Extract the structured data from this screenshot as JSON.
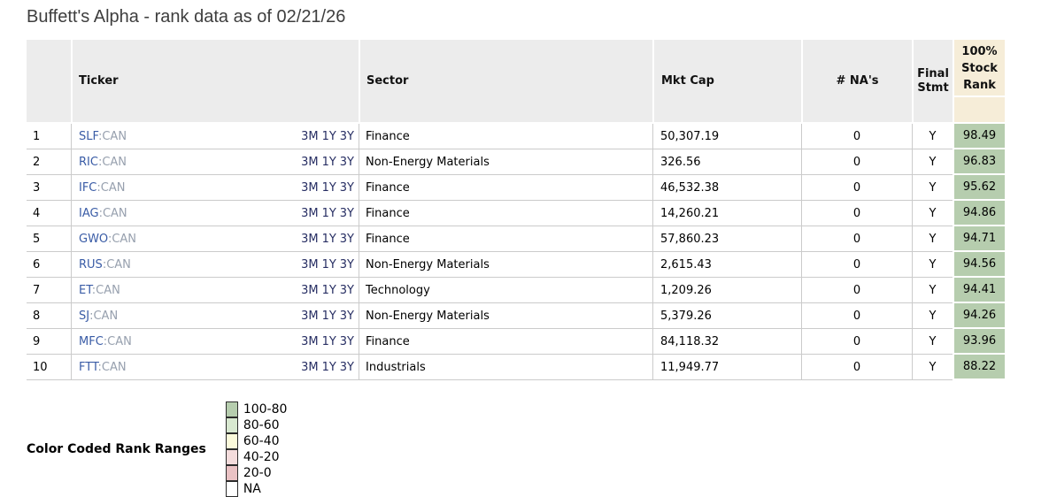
{
  "title": "Buffett's Alpha - rank data as of 02/21/26",
  "table": {
    "headers": {
      "rank_number": "",
      "ticker": "Ticker",
      "sector": "Sector",
      "mkt_cap": "Mkt Cap",
      "num_nas": "# NA's",
      "final_stmt": "Final\nStmt",
      "stock_rank": "100%\nStock\nRank"
    },
    "colors": {
      "header_bg": "#ececec",
      "rank_header_bg": "#f6edd8",
      "rank_cell_bg": "#b6cdae",
      "row_border": "#cbcbcb"
    },
    "rows": [
      {
        "num": "1",
        "ticker": "SLF",
        "suffix": ":CAN",
        "links": [
          "3M",
          "1Y",
          "3Y"
        ],
        "sector": "Finance",
        "mkt_cap": "50,307.19",
        "num_nas": "0",
        "final_stmt": "Y",
        "rank": "98.49"
      },
      {
        "num": "2",
        "ticker": "RIC",
        "suffix": ":CAN",
        "links": [
          "3M",
          "1Y",
          "3Y"
        ],
        "sector": "Non-Energy Materials",
        "mkt_cap": "326.56",
        "num_nas": "0",
        "final_stmt": "Y",
        "rank": "96.83"
      },
      {
        "num": "3",
        "ticker": "IFC",
        "suffix": ":CAN",
        "links": [
          "3M",
          "1Y",
          "3Y"
        ],
        "sector": "Finance",
        "mkt_cap": "46,532.38",
        "num_nas": "0",
        "final_stmt": "Y",
        "rank": "95.62"
      },
      {
        "num": "4",
        "ticker": "IAG",
        "suffix": ":CAN",
        "links": [
          "3M",
          "1Y",
          "3Y"
        ],
        "sector": "Finance",
        "mkt_cap": "14,260.21",
        "num_nas": "0",
        "final_stmt": "Y",
        "rank": "94.86"
      },
      {
        "num": "5",
        "ticker": "GWO",
        "suffix": ":CAN",
        "links": [
          "3M",
          "1Y",
          "3Y"
        ],
        "sector": "Finance",
        "mkt_cap": "57,860.23",
        "num_nas": "0",
        "final_stmt": "Y",
        "rank": "94.71"
      },
      {
        "num": "6",
        "ticker": "RUS",
        "suffix": ":CAN",
        "links": [
          "3M",
          "1Y",
          "3Y"
        ],
        "sector": "Non-Energy Materials",
        "mkt_cap": "2,615.43",
        "num_nas": "0",
        "final_stmt": "Y",
        "rank": "94.56"
      },
      {
        "num": "7",
        "ticker": "ET",
        "suffix": ":CAN",
        "links": [
          "3M",
          "1Y",
          "3Y"
        ],
        "sector": "Technology",
        "mkt_cap": "1,209.26",
        "num_nas": "0",
        "final_stmt": "Y",
        "rank": "94.41"
      },
      {
        "num": "8",
        "ticker": "SJ",
        "suffix": ":CAN",
        "links": [
          "3M",
          "1Y",
          "3Y"
        ],
        "sector": "Non-Energy Materials",
        "mkt_cap": "5,379.26",
        "num_nas": "0",
        "final_stmt": "Y",
        "rank": "94.26"
      },
      {
        "num": "9",
        "ticker": "MFC",
        "suffix": ":CAN",
        "links": [
          "3M",
          "1Y",
          "3Y"
        ],
        "sector": "Finance",
        "mkt_cap": "84,118.32",
        "num_nas": "0",
        "final_stmt": "Y",
        "rank": "93.96"
      },
      {
        "num": "10",
        "ticker": "FTT",
        "suffix": ":CAN",
        "links": [
          "3M",
          "1Y",
          "3Y"
        ],
        "sector": "Industrials",
        "mkt_cap": "11,949.77",
        "num_nas": "0",
        "final_stmt": "Y",
        "rank": "88.22"
      }
    ]
  },
  "legend": {
    "heading": "Color Coded Rank Ranges",
    "items": [
      {
        "label": "100-80",
        "color": "#b6cdae"
      },
      {
        "label": "80-60",
        "color": "#d8e8d0"
      },
      {
        "label": "60-40",
        "color": "#fbfadb"
      },
      {
        "label": "40-20",
        "color": "#f4dcdc"
      },
      {
        "label": "20-0",
        "color": "#eac2c4"
      },
      {
        "label": "NA",
        "color": "#ffffff"
      }
    ]
  }
}
